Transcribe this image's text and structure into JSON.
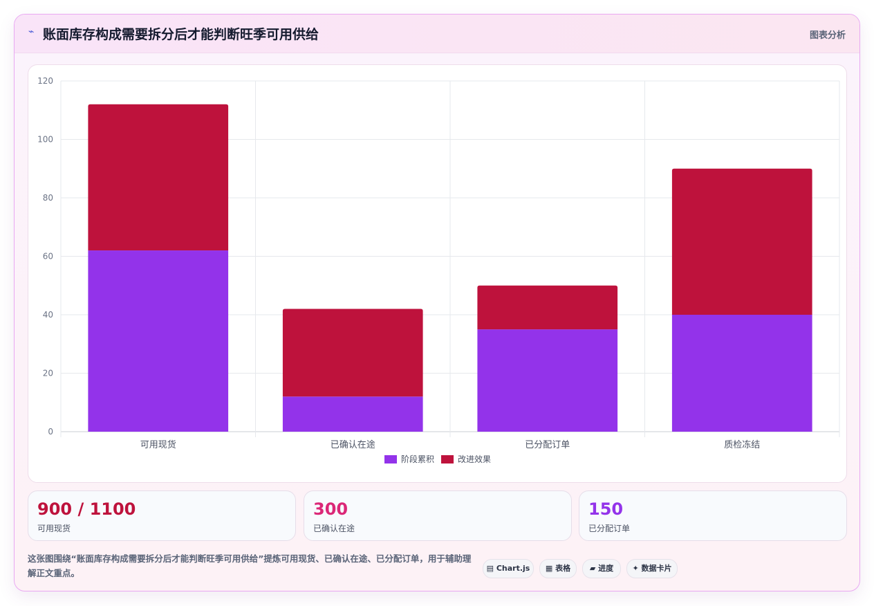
{
  "header": {
    "icon": "⌁",
    "title": "账面库存构成需要拆分后才能判断旺季可用供给",
    "tag": "图表分析"
  },
  "colors": {
    "series_a": "#9333ea",
    "series_b": "#be123c",
    "stat_1": "#be123c",
    "stat_2": "#db2777",
    "stat_3": "#9333ea"
  },
  "chart_data": {
    "type": "bar",
    "stacked": true,
    "categories": [
      "可用现货",
      "已确认在途",
      "已分配订单",
      "质检冻结"
    ],
    "series": [
      {
        "name": "阶段累积",
        "values": [
          62,
          12,
          35,
          40
        ]
      },
      {
        "name": "改进效果",
        "values": [
          50,
          30,
          15,
          50
        ]
      }
    ],
    "title": "",
    "xlabel": "",
    "ylabel": "",
    "ylim": [
      0,
      120
    ],
    "yticks": [
      0,
      20,
      40,
      60,
      80,
      100,
      120
    ],
    "grid": true,
    "legend": "bottom-center"
  },
  "stats": [
    {
      "value": "900 / 1100",
      "label": "可用现货"
    },
    {
      "value": "300",
      "label": "已确认在途"
    },
    {
      "value": "150",
      "label": "已分配订单"
    }
  ],
  "caption": "这张图围绕“账面库存构成需要拆分后才能判断旺季可用供给”提炼可用现货、已确认在途、已分配订单，用于辅助理解正文重点。",
  "chips": [
    {
      "icon": "chart-icon",
      "label": "▤ Chart.js"
    },
    {
      "icon": "table-icon",
      "label": "▦ 表格"
    },
    {
      "icon": "progress-icon",
      "label": "▰ 进度"
    },
    {
      "icon": "sparkle-icon",
      "label": "✦ 数据卡片"
    }
  ]
}
